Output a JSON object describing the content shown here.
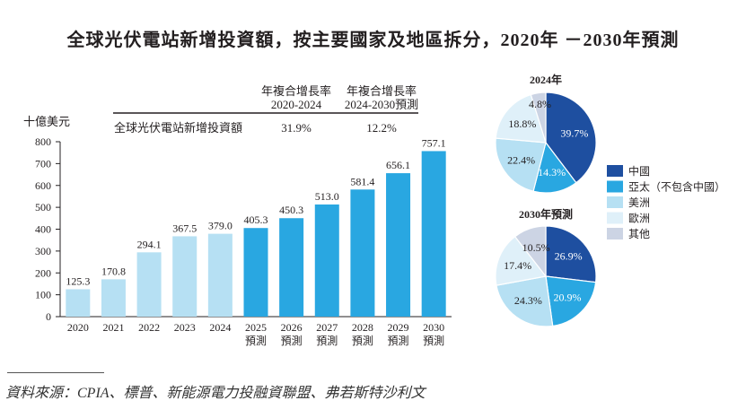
{
  "title": "全球光伏電站新增投資額，按主要國家及地區拆分，2020年 －2030年預測",
  "chart_data": [
    {
      "type": "bar",
      "title": "",
      "ylabel": "十億美元",
      "xlabel": "",
      "ylim": [
        0,
        800
      ],
      "yticks": [
        0,
        100,
        200,
        300,
        400,
        500,
        600,
        700,
        800
      ],
      "grid": false,
      "categories": [
        "2020",
        "2021",
        "2022",
        "2023",
        "2024",
        "2025",
        "2026",
        "2027",
        "2028",
        "2029",
        "2030"
      ],
      "category_sublabels": [
        "",
        "",
        "",
        "",
        "",
        "預測",
        "預測",
        "預測",
        "預測",
        "預測",
        "預測"
      ],
      "values": [
        125.3,
        170.8,
        294.1,
        367.5,
        379.0,
        405.3,
        450.3,
        513.0,
        581.4,
        656.1,
        757.1
      ],
      "value_labels": [
        "125.3",
        "170.8",
        "294.1",
        "367.5",
        "379.0",
        "405.3",
        "450.3",
        "513.0",
        "581.4",
        "656.1",
        "757.1"
      ],
      "colors": {
        "historical": "#b6e0f3",
        "forecast": "#29a7e1"
      },
      "forecast_from_index": 5,
      "cagr_table": {
        "headers": [
          {
            "line1": "年複合增長率",
            "line2": "2020-2024"
          },
          {
            "line1": "年複合增長率",
            "line2": "2024-2030預測"
          }
        ],
        "row_label": "全球光伏電站新增投資額",
        "values": [
          "31.9%",
          "12.2%"
        ]
      }
    },
    {
      "type": "pie",
      "title": "2024年",
      "labels": [
        "中國",
        "亞太（不包含中國）",
        "美洲",
        "歐洲",
        "其他"
      ],
      "values": [
        39.7,
        14.3,
        22.4,
        18.8,
        4.8
      ],
      "value_labels": [
        "39.7%",
        "14.3%",
        "22.4%",
        "18.8%",
        "4.8%"
      ]
    },
    {
      "type": "pie",
      "title": "2030年預測",
      "labels": [
        "中國",
        "亞太（不包含中國）",
        "美洲",
        "歐洲",
        "其他"
      ],
      "values": [
        26.9,
        20.9,
        24.3,
        17.4,
        10.5
      ],
      "value_labels": [
        "26.9%",
        "20.9%",
        "24.3%",
        "17.4%",
        "10.5%"
      ]
    }
  ],
  "legend": {
    "placement": "right",
    "items": [
      {
        "label": "中國",
        "color": "#1e4fa0"
      },
      {
        "label": "亞太（不包含中國）",
        "color": "#29a7e1"
      },
      {
        "label": "美洲",
        "color": "#b6e0f3"
      },
      {
        "label": "歐洲",
        "color": "#dff0f9"
      },
      {
        "label": "其他",
        "color": "#ccd4e4"
      }
    ]
  },
  "source": "資料來源：CPIA、標普、新能源電力投融資聯盟、弗若斯特沙利文"
}
